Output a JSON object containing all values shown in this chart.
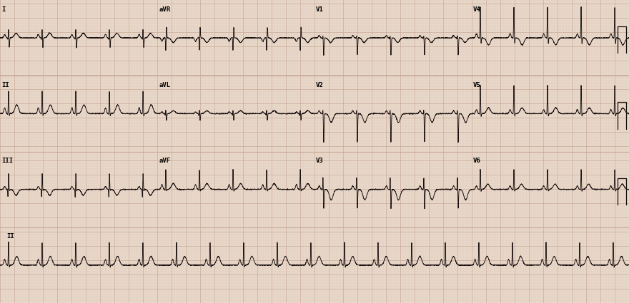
{
  "bg_color": "#e8d8c8",
  "grid_major_color": "#c8a898",
  "grid_minor_color": "#dcc8bc",
  "line_color": "#1a1010",
  "label_color": "#000000",
  "fig_width": 8.8,
  "fig_height": 4.25,
  "dpi": 100,
  "heart_rate": 112,
  "leads_layout": [
    [
      [
        "I",
        0
      ],
      [
        "aVR",
        1
      ],
      [
        "V1",
        2
      ],
      [
        "V4",
        3
      ]
    ],
    [
      [
        "II",
        1
      ],
      [
        "aVL",
        2
      ],
      [
        "V2",
        3
      ],
      [
        "V5",
        4
      ]
    ],
    [
      [
        "III",
        2
      ],
      [
        "aVF",
        3
      ],
      [
        "V3",
        4
      ],
      [
        "V6",
        5
      ]
    ],
    [
      [
        "II",
        6
      ]
    ]
  ],
  "amplitudes": {
    "I": {
      "p": 0.06,
      "q": -0.05,
      "r": 0.18,
      "s": -0.18,
      "t": 0.08
    },
    "II": {
      "p": 0.1,
      "q": -0.03,
      "r": 0.4,
      "s": -0.05,
      "t": 0.15
    },
    "III": {
      "p": 0.05,
      "q": -0.18,
      "r": 0.3,
      "s": -0.03,
      "t": -0.1
    },
    "aVR": {
      "p": -0.06,
      "q": 0.03,
      "r": -0.25,
      "s": 0.2,
      "t": -0.08
    },
    "aVL": {
      "p": 0.03,
      "q": -0.04,
      "r": 0.08,
      "s": -0.12,
      "t": 0.05
    },
    "aVF": {
      "p": 0.08,
      "q": -0.04,
      "r": 0.35,
      "s": -0.04,
      "t": 0.1
    },
    "V1": {
      "p": 0.04,
      "q": -0.02,
      "r": 0.06,
      "s": -0.3,
      "t": -0.08
    },
    "V2": {
      "p": 0.05,
      "q": -0.02,
      "r": 0.1,
      "s": -0.5,
      "t": -0.15
    },
    "V3": {
      "p": 0.06,
      "q": -0.03,
      "r": 0.25,
      "s": -0.35,
      "t": -0.18
    },
    "V4": {
      "p": 0.07,
      "q": -0.03,
      "r": 0.55,
      "s": -0.12,
      "t": -0.12
    },
    "V5": {
      "p": 0.07,
      "q": -0.03,
      "r": 0.5,
      "s": -0.06,
      "t": 0.1
    },
    "V6": {
      "p": 0.06,
      "q": -0.03,
      "r": 0.35,
      "s": -0.04,
      "t": 0.09
    }
  }
}
